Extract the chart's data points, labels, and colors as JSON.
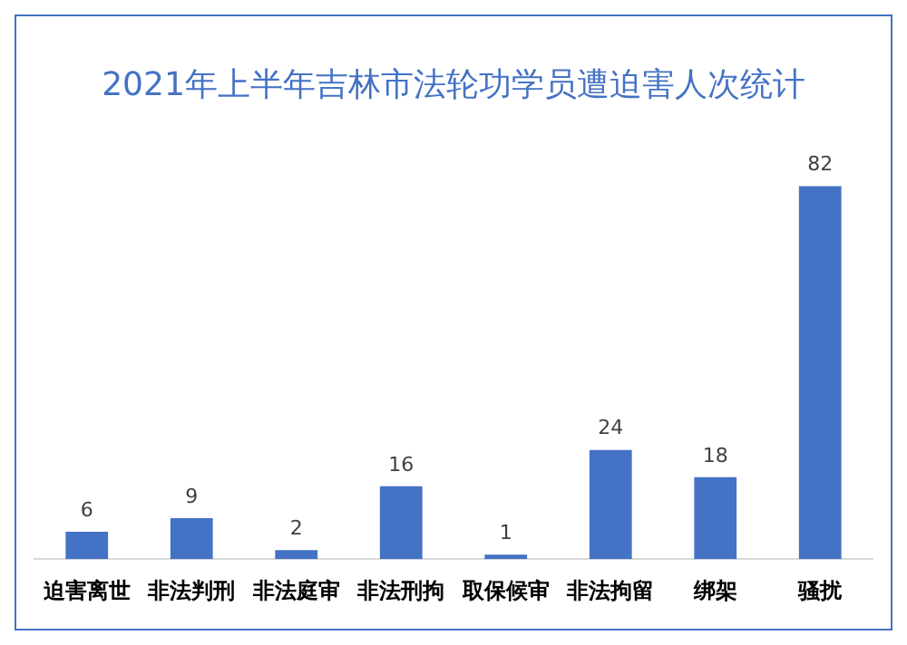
{
  "chart_data": {
    "type": "bar",
    "title": "2021年上半年吉林市法轮功学员遭迫害人次统计",
    "categories": [
      "迫害离世",
      "非法判刑",
      "非法庭审",
      "非法刑拘",
      "取保候审",
      "非法拘留",
      "绑架",
      "骚扰"
    ],
    "values": [
      6,
      9,
      2,
      16,
      1,
      24,
      18,
      82
    ],
    "color": "#4472c4",
    "data_labels": true,
    "grid": false,
    "legend": false,
    "tick_labels": "x"
  }
}
